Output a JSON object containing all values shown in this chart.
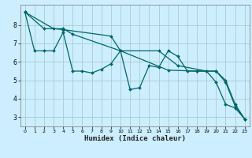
{
  "xlabel": "Humidex (Indice chaleur)",
  "background_color": "#cceeff",
  "grid_color": "#aacccc",
  "line_color": "#006666",
  "xlim": [
    -0.5,
    23.5
  ],
  "ylim": [
    2.5,
    9.1
  ],
  "yticks": [
    3,
    4,
    5,
    6,
    7,
    8
  ],
  "xticks": [
    0,
    1,
    2,
    3,
    4,
    5,
    6,
    7,
    8,
    9,
    10,
    11,
    12,
    13,
    14,
    15,
    16,
    17,
    18,
    19,
    20,
    21,
    22,
    23
  ],
  "series1": [
    [
      0,
      8.7
    ],
    [
      1,
      6.6
    ],
    [
      2,
      6.6
    ],
    [
      3,
      6.6
    ],
    [
      4,
      7.6
    ],
    [
      5,
      5.5
    ],
    [
      6,
      5.5
    ],
    [
      7,
      5.4
    ],
    [
      8,
      5.6
    ],
    [
      9,
      5.9
    ],
    [
      10,
      6.6
    ],
    [
      11,
      4.5
    ],
    [
      12,
      4.6
    ],
    [
      13,
      5.8
    ],
    [
      14,
      5.7
    ],
    [
      15,
      6.6
    ],
    [
      16,
      6.3
    ],
    [
      17,
      5.5
    ],
    [
      18,
      5.5
    ],
    [
      19,
      5.5
    ],
    [
      20,
      4.9
    ],
    [
      21,
      3.7
    ],
    [
      22,
      3.5
    ],
    [
      23,
      2.9
    ]
  ],
  "series2": [
    [
      0,
      8.7
    ],
    [
      2,
      7.8
    ],
    [
      4,
      7.8
    ],
    [
      5,
      7.5
    ],
    [
      10,
      6.6
    ],
    [
      14,
      6.6
    ],
    [
      16,
      5.8
    ],
    [
      19,
      5.5
    ],
    [
      20,
      5.5
    ],
    [
      21,
      5.0
    ],
    [
      22,
      3.7
    ],
    [
      23,
      2.9
    ]
  ],
  "series3": [
    [
      0,
      8.7
    ],
    [
      3,
      7.8
    ],
    [
      4,
      7.75
    ],
    [
      9,
      7.4
    ],
    [
      10,
      6.6
    ],
    [
      15,
      5.55
    ],
    [
      18,
      5.5
    ],
    [
      20,
      5.5
    ],
    [
      21,
      4.9
    ],
    [
      22,
      3.6
    ],
    [
      23,
      2.9
    ]
  ]
}
